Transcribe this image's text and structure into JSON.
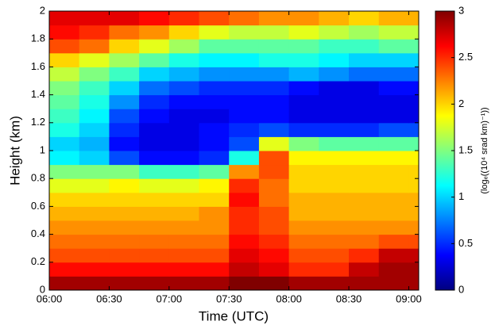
{
  "chart_data": {
    "type": "heatmap",
    "xlabel": "Time (UTC)",
    "ylabel": "Height (km)",
    "colorbar_label": "(logₑ((10⁴ srad km)⁻¹))",
    "colormap": "jet",
    "clim": [
      0,
      3
    ],
    "cticks": [
      0,
      0.5,
      1,
      1.5,
      2,
      2.5,
      3
    ],
    "xlim": [
      360,
      545
    ],
    "xticks": [
      {
        "value": 360,
        "label": "06:00"
      },
      {
        "value": 390,
        "label": "06:30"
      },
      {
        "value": 420,
        "label": "07:00"
      },
      {
        "value": 450,
        "label": "07:30"
      },
      {
        "value": 480,
        "label": "08:00"
      },
      {
        "value": 510,
        "label": "08:30"
      },
      {
        "value": 540,
        "label": "09:00"
      }
    ],
    "ylim": [
      0,
      2
    ],
    "yticks": [
      0,
      0.2,
      0.4,
      0.6,
      0.8,
      1,
      1.2,
      1.4,
      1.6,
      1.8,
      2
    ],
    "xbins": [
      360,
      375,
      390,
      405,
      420,
      435,
      450,
      465,
      480,
      495,
      510,
      525,
      540,
      545
    ],
    "ybins": [
      0,
      0.1,
      0.2,
      0.3,
      0.4,
      0.5,
      0.6,
      0.7,
      0.8,
      0.9,
      1.0,
      1.1,
      1.2,
      1.3,
      1.4,
      1.5,
      1.6,
      1.7,
      1.8,
      1.9,
      2.0
    ],
    "z": [
      [
        2.9,
        2.9,
        2.9,
        2.9,
        2.9,
        2.9,
        3.0,
        3.0,
        2.9,
        2.9,
        2.9,
        2.9,
        2.9
      ],
      [
        2.6,
        2.6,
        2.6,
        2.6,
        2.6,
        2.6,
        2.8,
        2.7,
        2.5,
        2.5,
        2.8,
        2.9,
        2.9
      ],
      [
        2.4,
        2.4,
        2.4,
        2.4,
        2.4,
        2.4,
        2.7,
        2.6,
        2.4,
        2.4,
        2.5,
        2.8,
        2.8
      ],
      [
        2.3,
        2.3,
        2.3,
        2.3,
        2.3,
        2.3,
        2.6,
        2.5,
        2.3,
        2.3,
        2.3,
        2.4,
        2.4
      ],
      [
        2.2,
        2.2,
        2.2,
        2.2,
        2.2,
        2.2,
        2.5,
        2.4,
        2.2,
        2.2,
        2.2,
        2.2,
        2.2
      ],
      [
        2.1,
        2.1,
        2.1,
        2.1,
        2.1,
        2.2,
        2.5,
        2.4,
        2.1,
        2.1,
        2.1,
        2.1,
        2.1
      ],
      [
        2.0,
        2.0,
        2.0,
        2.0,
        2.0,
        2.0,
        2.6,
        2.3,
        2.1,
        2.1,
        2.1,
        2.1,
        2.1
      ],
      [
        1.8,
        1.8,
        1.9,
        1.8,
        1.8,
        1.9,
        2.5,
        2.3,
        2.0,
        2.0,
        2.0,
        2.0,
        2.0
      ],
      [
        1.5,
        1.5,
        1.5,
        1.3,
        1.3,
        1.4,
        2.2,
        2.4,
        2.0,
        2.0,
        2.0,
        2.0,
        2.0
      ],
      [
        1.1,
        1.0,
        0.6,
        0.4,
        0.4,
        0.5,
        1.2,
        2.4,
        1.9,
        1.9,
        1.9,
        1.9,
        1.9
      ],
      [
        1.0,
        0.9,
        0.4,
        0.3,
        0.3,
        0.4,
        0.6,
        1.8,
        1.5,
        1.4,
        1.4,
        1.4,
        1.4
      ],
      [
        1.2,
        1.0,
        0.5,
        0.3,
        0.3,
        0.4,
        0.5,
        0.6,
        0.5,
        0.5,
        0.5,
        0.6,
        0.6
      ],
      [
        1.3,
        1.1,
        0.6,
        0.4,
        0.3,
        0.3,
        0.4,
        0.4,
        0.3,
        0.3,
        0.3,
        0.3,
        0.3
      ],
      [
        1.4,
        1.2,
        0.8,
        0.5,
        0.4,
        0.4,
        0.4,
        0.4,
        0.3,
        0.3,
        0.3,
        0.3,
        0.3
      ],
      [
        1.5,
        1.3,
        1.0,
        0.7,
        0.6,
        0.5,
        0.5,
        0.5,
        0.4,
        0.3,
        0.3,
        0.4,
        0.4
      ],
      [
        1.7,
        1.5,
        1.3,
        1.0,
        0.9,
        0.8,
        0.8,
        0.8,
        0.9,
        0.8,
        0.7,
        0.7,
        0.7
      ],
      [
        2.0,
        1.8,
        1.6,
        1.4,
        1.2,
        1.1,
        1.1,
        1.2,
        1.2,
        1.1,
        1.0,
        1.0,
        1.0
      ],
      [
        2.4,
        2.3,
        2.0,
        1.8,
        1.6,
        1.4,
        1.4,
        1.4,
        1.4,
        1.3,
        1.3,
        1.4,
        1.4
      ],
      [
        2.6,
        2.5,
        2.3,
        2.2,
        2.0,
        1.8,
        1.7,
        1.7,
        1.8,
        1.7,
        1.6,
        1.7,
        1.7
      ],
      [
        2.7,
        2.7,
        2.7,
        2.6,
        2.5,
        2.4,
        2.3,
        2.2,
        2.2,
        2.1,
        2.0,
        2.1,
        2.1
      ]
    ]
  }
}
